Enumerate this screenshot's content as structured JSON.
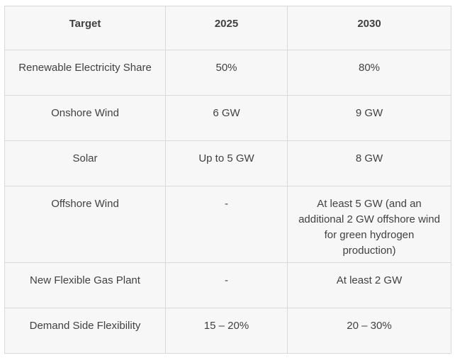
{
  "chart_data": {
    "type": "table",
    "columns": [
      "Target",
      "2025",
      "2030"
    ],
    "rows": [
      [
        "Renewable Electricity Share",
        "50%",
        "80%"
      ],
      [
        "Onshore Wind",
        "6 GW",
        "9 GW"
      ],
      [
        "Solar",
        "Up to 5 GW",
        "8 GW"
      ],
      [
        "Offshore Wind",
        "-",
        "At least 5 GW (and an additional 2 GW offshore wind for green hydrogen production)"
      ],
      [
        "New Flexible Gas Plant",
        "-",
        "At least 2 GW"
      ],
      [
        "Demand Side Flexibility",
        "15 – 20%",
        "20 – 30%"
      ]
    ]
  },
  "colors": {
    "page_bg": "#ffffff",
    "cell_bg": "#f7f7f7",
    "border": "#d8d8d8",
    "text": "#414141"
  }
}
